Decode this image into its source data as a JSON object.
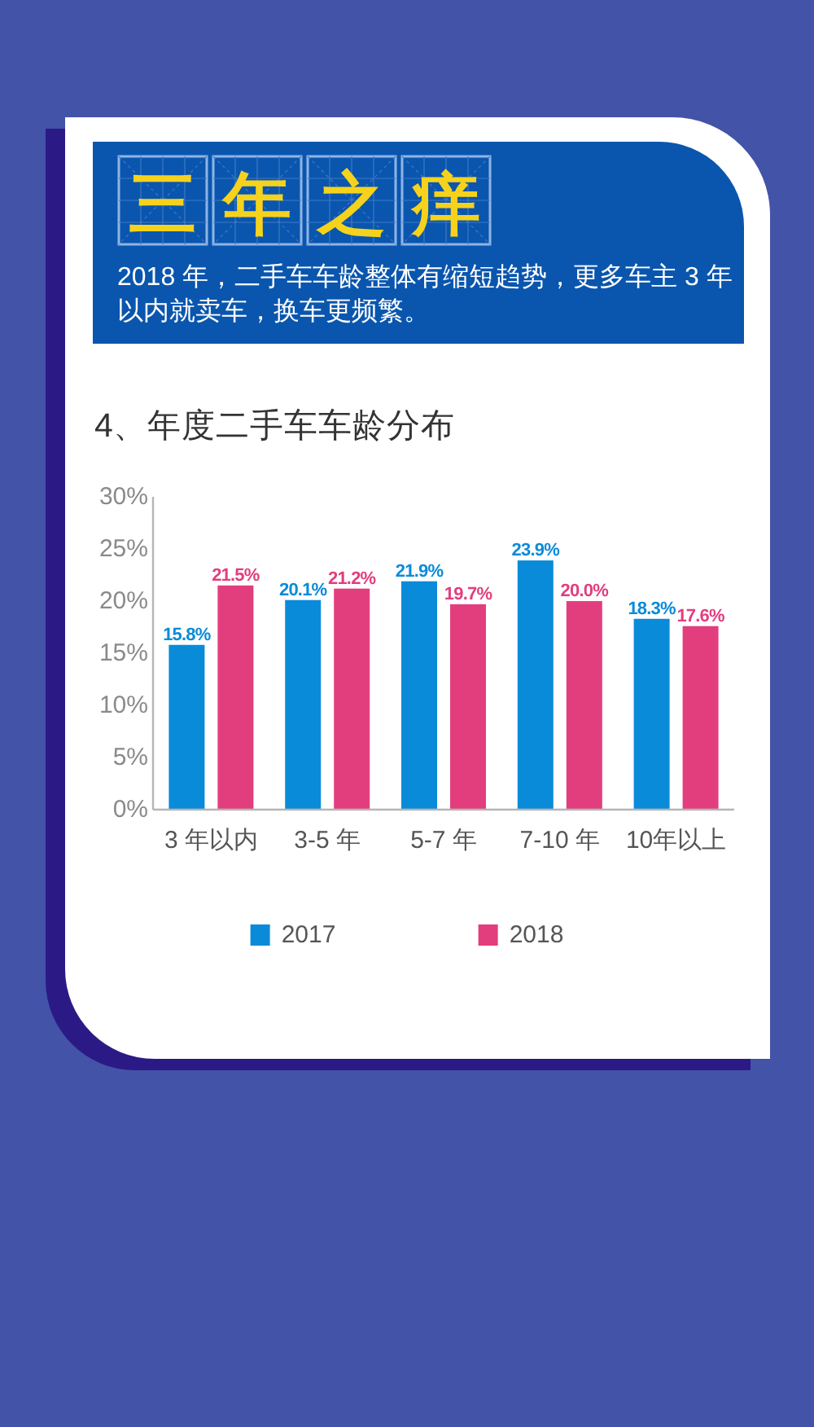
{
  "chart_data": {
    "type": "bar",
    "title": "三年之痒",
    "subtitle": "2018 年，二手车车龄整体有缩短趋势，更多车主 3 年以内就卖车，换车更频繁。",
    "annotations": [
      "4、年度二手车车龄分布"
    ],
    "categories": [
      "3 年以内",
      "3-5 年",
      "5-7 年",
      "7-10 年",
      "10年以上"
    ],
    "series": [
      {
        "name": "2017",
        "color": "#0a8bd9",
        "values": [
          15.8,
          20.1,
          21.9,
          23.9,
          18.3
        ],
        "value_labels": [
          "15.8%",
          "20.1%",
          "21.9%",
          "23.9%",
          "18.3%"
        ]
      },
      {
        "name": "2018",
        "color": "#e23e7e",
        "values": [
          21.5,
          21.2,
          19.7,
          20.0,
          17.6
        ],
        "value_labels": [
          "21.5%",
          "21.2%",
          "19.7%",
          "20.0%",
          "17.6%"
        ]
      }
    ],
    "ylim": [
      0,
      30
    ],
    "yticks": [
      {
        "value": 0,
        "label": "0%"
      },
      {
        "value": 5,
        "label": "5%"
      },
      {
        "value": 10,
        "label": "10%"
      },
      {
        "value": 15,
        "label": "15%"
      },
      {
        "value": 20,
        "label": "20%"
      },
      {
        "value": 25,
        "label": "25%"
      },
      {
        "value": 30,
        "label": "30%"
      }
    ],
    "grid": false,
    "legend": "bottom"
  }
}
